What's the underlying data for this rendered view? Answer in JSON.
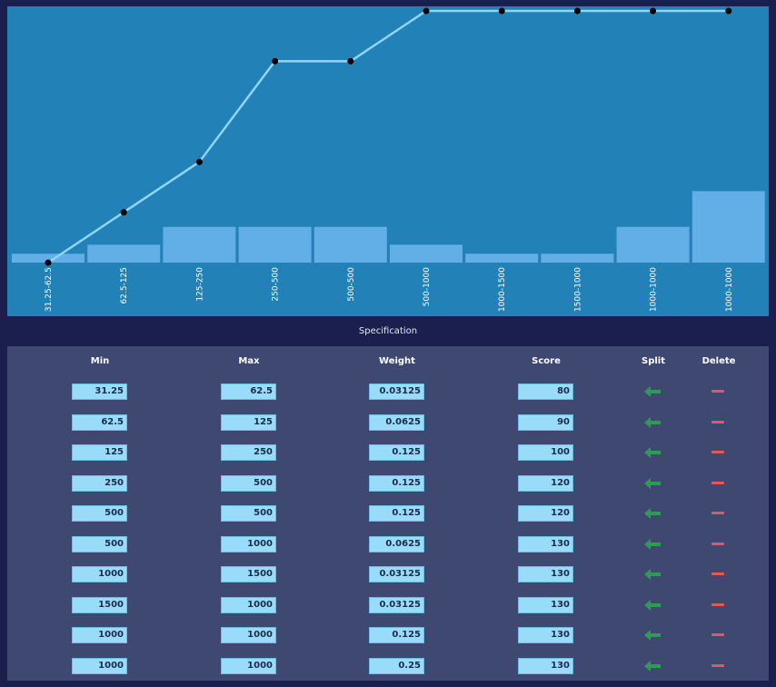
{
  "chart_data": {
    "type": "bar",
    "categories": [
      "31.25-62.5",
      "62.5-125",
      "125-250",
      "250-500",
      "500-500",
      "500-1000",
      "1000-1500",
      "1500-1000",
      "1000-1000",
      "1000-1000"
    ],
    "bar_values": [
      0.03125,
      0.0625,
      0.125,
      0.125,
      0.125,
      0.0625,
      0.03125,
      0.03125,
      0.125,
      0.25
    ],
    "line_values": [
      80,
      90,
      100,
      120,
      120,
      130,
      130,
      130,
      130,
      130
    ],
    "bar_ylim": [
      0,
      0.89
    ],
    "line_ylim": [
      80,
      130
    ],
    "colors": {
      "bar": "#62aee6",
      "line": "#8fd6f5",
      "point": "#000000",
      "background": "#2281b7",
      "tick": "#ffffff"
    }
  },
  "section": {
    "title": "Specification"
  },
  "table": {
    "headers": {
      "min": "Min",
      "max": "Max",
      "weight": "Weight",
      "score": "Score",
      "split": "Split",
      "delete": "Delete"
    },
    "rows": [
      {
        "min": "31.25",
        "max": "62.5",
        "weight": "0.03125",
        "score": "80"
      },
      {
        "min": "62.5",
        "max": "125",
        "weight": "0.0625",
        "score": "90"
      },
      {
        "min": "125",
        "max": "250",
        "weight": "0.125",
        "score": "100"
      },
      {
        "min": "250",
        "max": "500",
        "weight": "0.125",
        "score": "120"
      },
      {
        "min": "500",
        "max": "500",
        "weight": "0.125",
        "score": "120"
      },
      {
        "min": "500",
        "max": "1000",
        "weight": "0.0625",
        "score": "130"
      },
      {
        "min": "1000",
        "max": "1500",
        "weight": "0.03125",
        "score": "130"
      },
      {
        "min": "1500",
        "max": "1000",
        "weight": "0.03125",
        "score": "130"
      },
      {
        "min": "1000",
        "max": "1000",
        "weight": "0.125",
        "score": "130"
      },
      {
        "min": "1000",
        "max": "1000",
        "weight": "0.25",
        "score": "130"
      }
    ],
    "icons": {
      "split": "arrow-left-icon",
      "delete": "minus-icon"
    },
    "icon_colors": {
      "split": "#2e9a55",
      "delete": "#e05a5a"
    }
  }
}
